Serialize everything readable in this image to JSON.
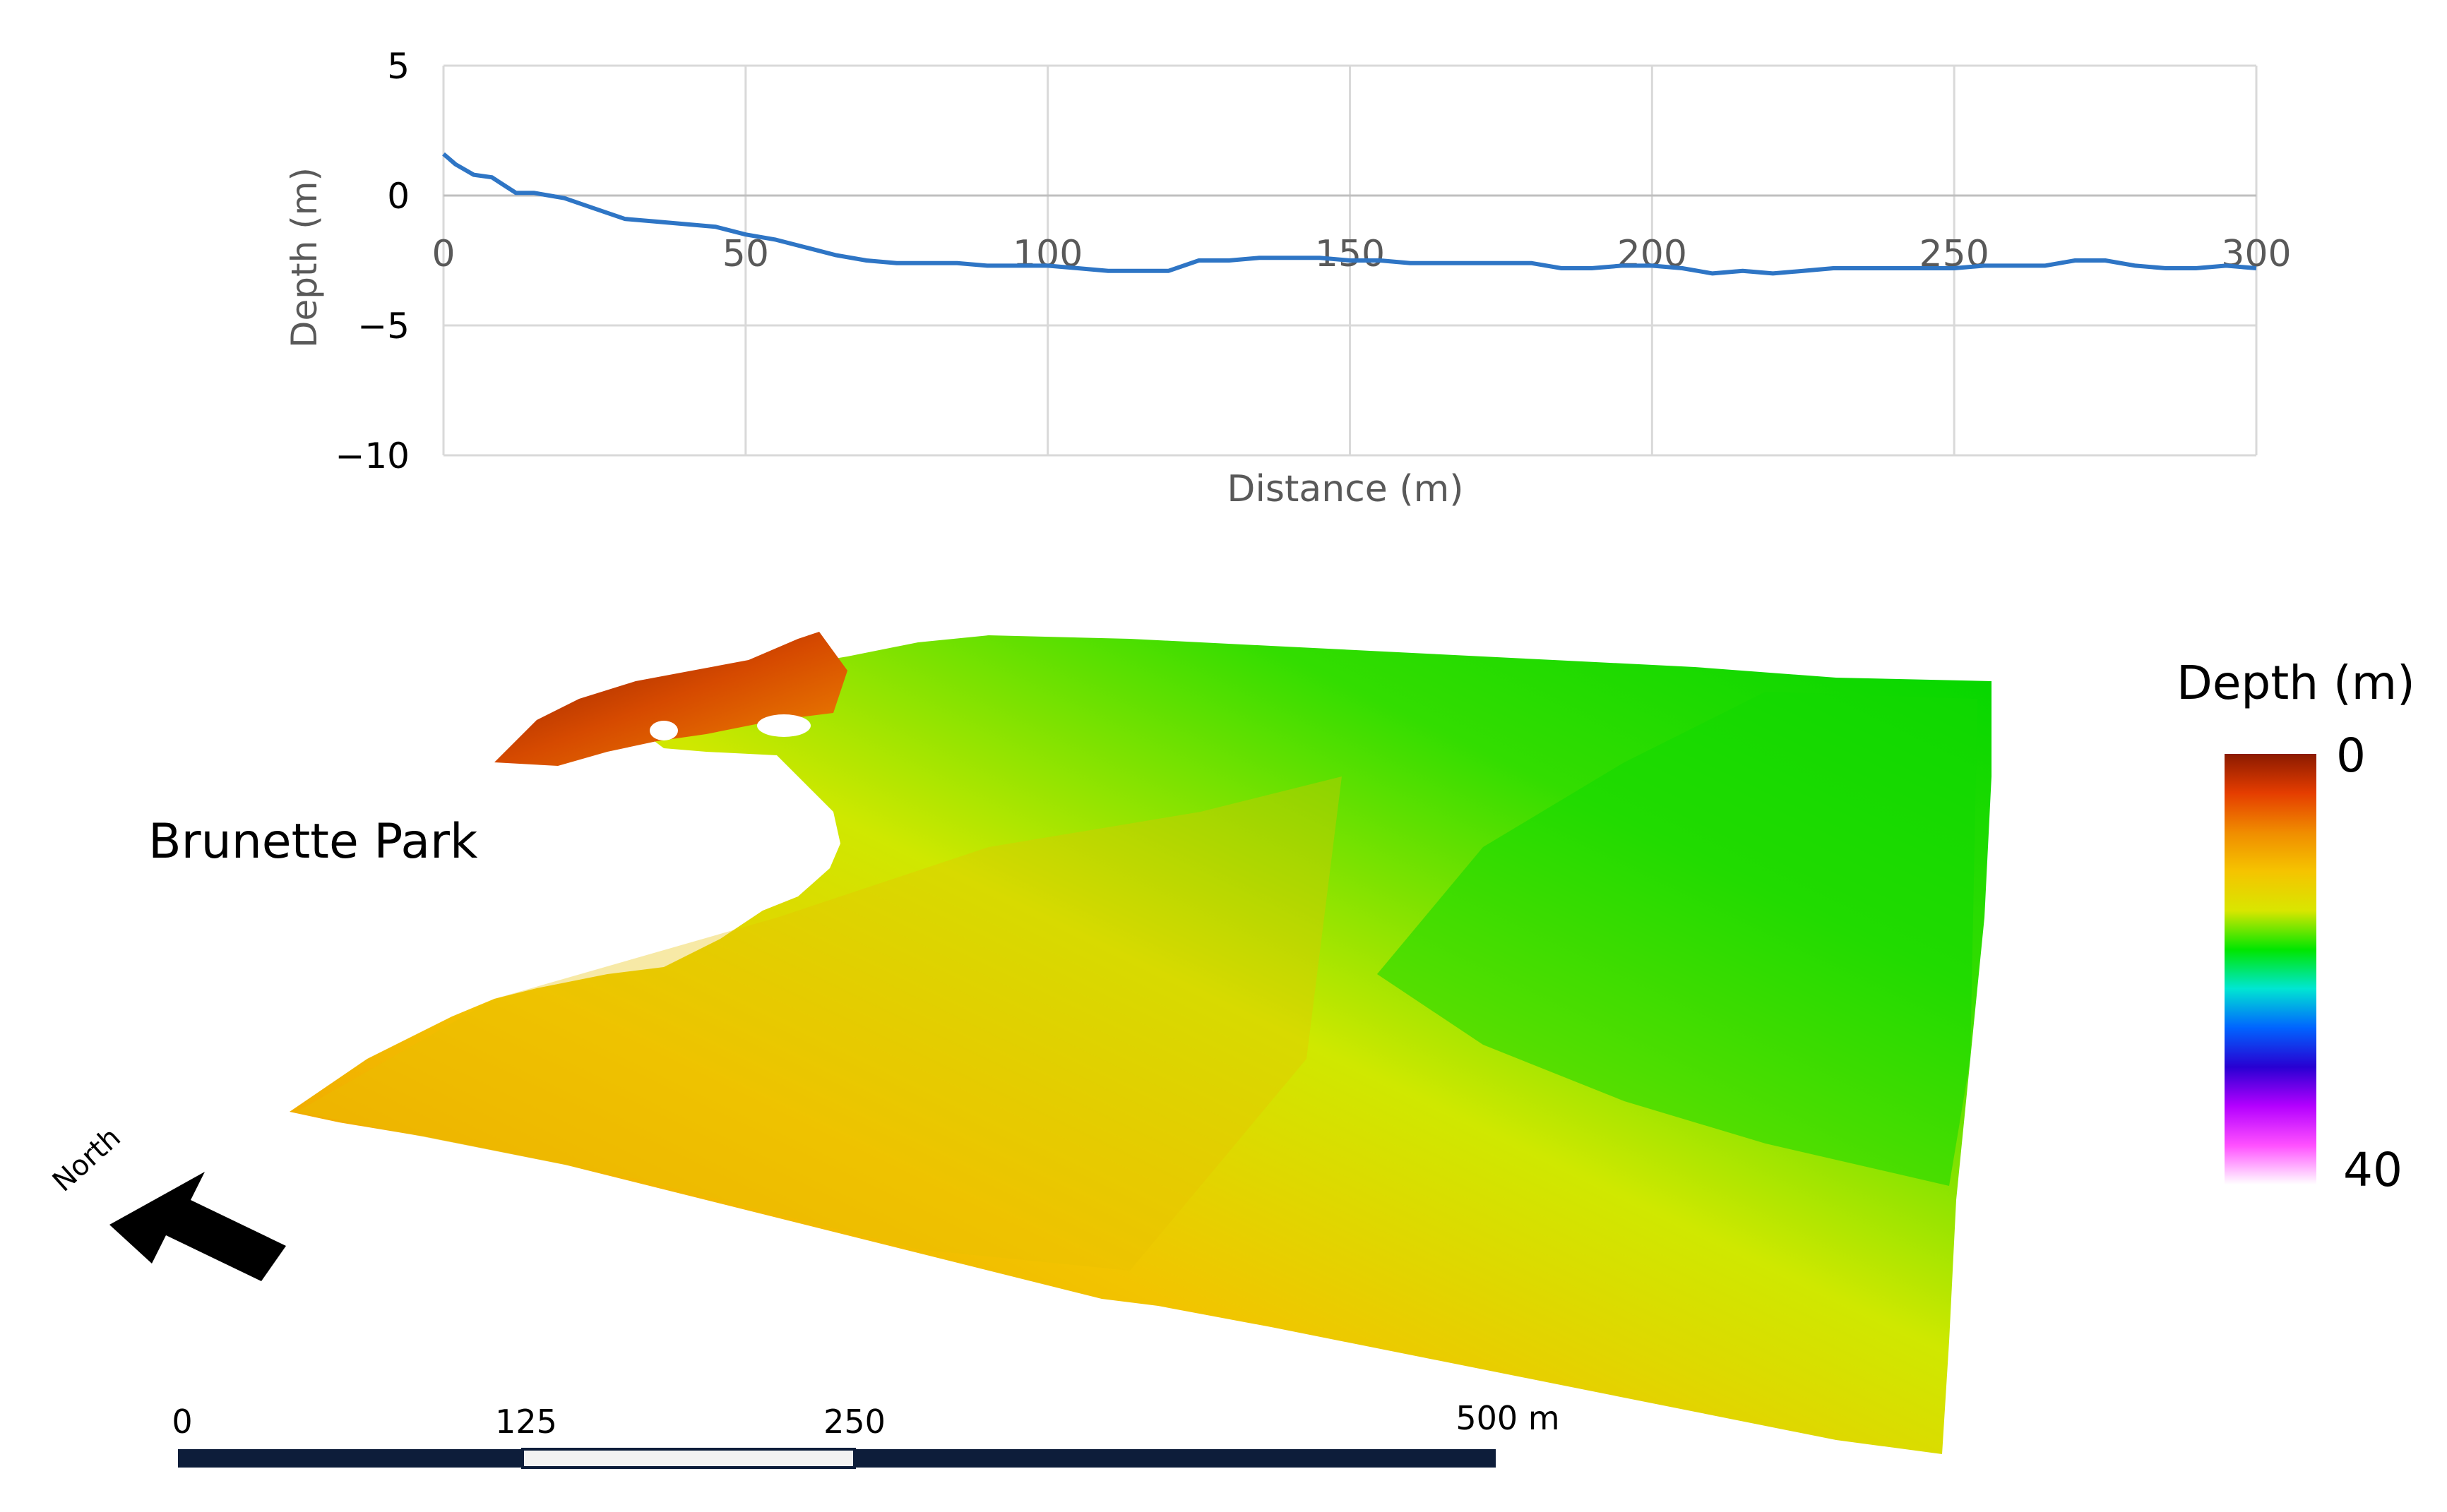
{
  "chart_data": [
    {
      "type": "line",
      "title": "",
      "xlabel": "Distance (m)",
      "ylabel": "Depth (m)",
      "xlim": [
        0,
        300
      ],
      "ylim": [
        -10,
        5
      ],
      "x_ticks": [
        "0",
        "50",
        "100",
        "150",
        "200",
        "250",
        "300"
      ],
      "y_ticks": [
        "5",
        "0",
        "−5",
        "−10"
      ],
      "grid": true,
      "line_color": "#2e75c5",
      "series": [
        {
          "x": [
            0,
            2,
            5,
            8,
            10,
            12,
            15,
            20,
            25,
            30,
            35,
            40,
            45,
            50,
            55,
            60,
            65,
            70,
            75,
            80,
            85,
            90,
            95,
            100,
            105,
            110,
            115,
            120,
            125,
            130,
            135,
            140,
            145,
            150,
            155,
            160,
            165,
            170,
            175,
            180,
            185,
            190,
            195,
            200,
            205,
            210,
            215,
            220,
            225,
            230,
            235,
            240,
            245,
            250,
            255,
            260,
            265,
            270,
            275,
            280,
            285,
            290,
            295,
            300
          ],
          "y": [
            1.6,
            1.2,
            0.8,
            0.7,
            0.4,
            0.1,
            0.1,
            -0.1,
            -0.5,
            -0.9,
            -1.0,
            -1.1,
            -1.2,
            -1.5,
            -1.7,
            -2.0,
            -2.3,
            -2.5,
            -2.6,
            -2.6,
            -2.6,
            -2.7,
            -2.7,
            -2.7,
            -2.8,
            -2.9,
            -2.9,
            -2.9,
            -2.5,
            -2.5,
            -2.4,
            -2.4,
            -2.4,
            -2.5,
            -2.5,
            -2.6,
            -2.6,
            -2.6,
            -2.6,
            -2.6,
            -2.8,
            -2.8,
            -2.7,
            -2.7,
            -2.8,
            -3.0,
            -2.9,
            -3.0,
            -2.9,
            -2.8,
            -2.8,
            -2.8,
            -2.8,
            -2.8,
            -2.7,
            -2.7,
            -2.7,
            -2.5,
            -2.5,
            -2.7,
            -2.8,
            -2.8,
            -2.7,
            -2.8
          ]
        }
      ]
    },
    {
      "type": "heatmap",
      "view": "3D perspective bathymetry surface",
      "colorbar": {
        "title": "Depth (m)",
        "min_label": "0",
        "max_label": "40",
        "range": [
          0,
          40
        ],
        "colors": [
          "#8b1a00",
          "#e53d00",
          "#f08c00",
          "#f5c400",
          "#d9e600",
          "#00e600",
          "#00e6d2",
          "#0064ff",
          "#2800d2",
          "#b400ff",
          "#ff50ff",
          "#ffffff"
        ]
      },
      "place_label": "Brunette Park",
      "north_label": "North",
      "scale_bar": {
        "labels": [
          "0",
          "125",
          "250",
          "500 m"
        ],
        "segment_colors": [
          "#0d1d3a",
          "#f2f2f2",
          "#0d1d3a"
        ]
      }
    }
  ]
}
